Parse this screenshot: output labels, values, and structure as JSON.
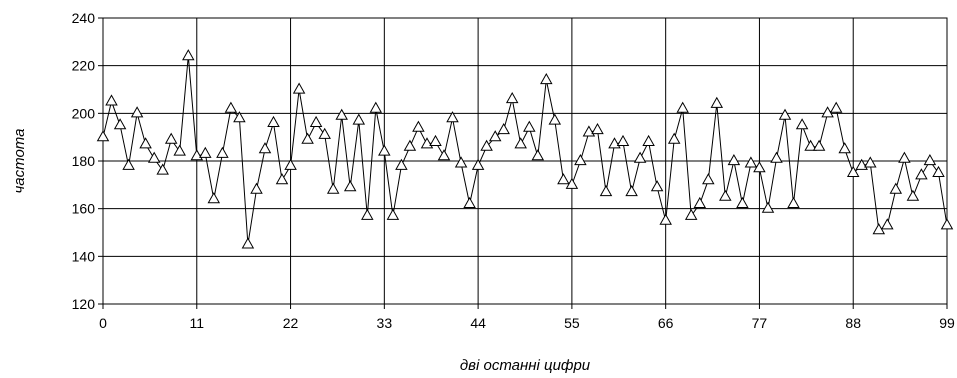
{
  "chart_data": {
    "type": "line",
    "title": "",
    "xlabel": "дві останні цифри",
    "ylabel": "частота",
    "xlim": [
      0,
      99
    ],
    "ylim": [
      120,
      240
    ],
    "grid": true,
    "marker": "triangle",
    "x_ticks": [
      0,
      11,
      22,
      33,
      44,
      55,
      66,
      77,
      88,
      99
    ],
    "y_ticks": [
      120,
      140,
      160,
      180,
      200,
      220,
      240
    ],
    "x": [
      0,
      1,
      2,
      3,
      4,
      5,
      6,
      7,
      8,
      9,
      10,
      11,
      12,
      13,
      14,
      15,
      16,
      17,
      18,
      19,
      20,
      21,
      22,
      23,
      24,
      25,
      26,
      27,
      28,
      29,
      30,
      31,
      32,
      33,
      34,
      35,
      36,
      37,
      38,
      39,
      40,
      41,
      42,
      43,
      44,
      45,
      46,
      47,
      48,
      49,
      50,
      51,
      52,
      53,
      54,
      55,
      56,
      57,
      58,
      59,
      60,
      61,
      62,
      63,
      64,
      65,
      66,
      67,
      68,
      69,
      70,
      71,
      72,
      73,
      74,
      75,
      76,
      77,
      78,
      79,
      80,
      81,
      82,
      83,
      84,
      85,
      86,
      87,
      88,
      89,
      90,
      91,
      92,
      93,
      94,
      95,
      96,
      97,
      98,
      99
    ],
    "series": [
      {
        "values": [
          190,
          205,
          195,
          178,
          200,
          187,
          181,
          176,
          189,
          184,
          224,
          182,
          183,
          164,
          183,
          202,
          198,
          145,
          168,
          185,
          196,
          172,
          178,
          210,
          189,
          196,
          191,
          168,
          199,
          169,
          197,
          157,
          202,
          184,
          157,
          178,
          186,
          194,
          187,
          188,
          182,
          198,
          179,
          162,
          178,
          186,
          190,
          193,
          206,
          187,
          194,
          182,
          214,
          197,
          172,
          170,
          180,
          192,
          193,
          167,
          187,
          188,
          167,
          181,
          188,
          169,
          155,
          189,
          202,
          157,
          162,
          172,
          204,
          165,
          180,
          162,
          179,
          177,
          160,
          181,
          199,
          162,
          195,
          186,
          186,
          200,
          202,
          185,
          175,
          178,
          179,
          151,
          153,
          168,
          181,
          165,
          174,
          180,
          175,
          153
        ]
      }
    ]
  }
}
